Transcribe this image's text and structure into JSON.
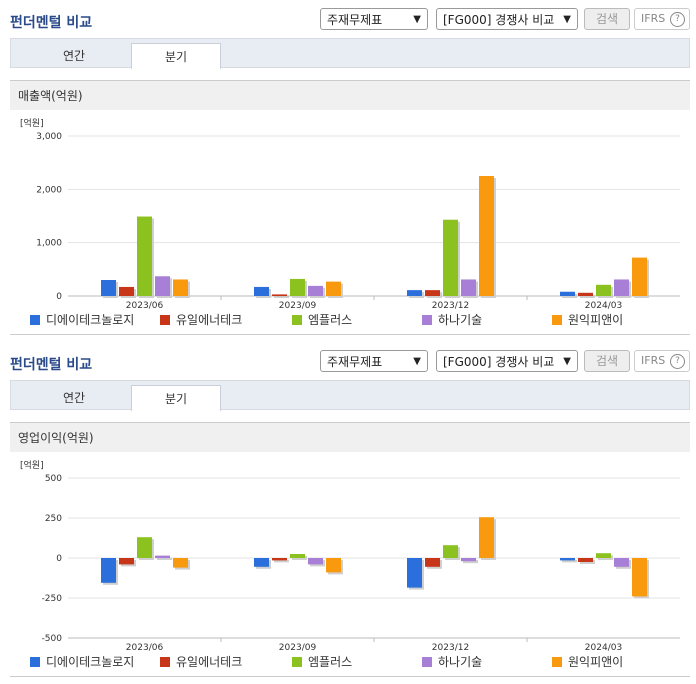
{
  "panels": [
    {
      "title": "펀더멘털 비교",
      "select1": "주재무제표",
      "select2": "[FG000] 경쟁사 비교",
      "search_label": "검색",
      "ifrs_label": "IFRS",
      "ifrs_help": "?",
      "tabs": [
        "연간",
        "분기"
      ],
      "active_tab": 1,
      "section_title": "매출액(억원)",
      "chart_data": {
        "type": "bar",
        "unit_label": "[억원]",
        "categories": [
          "2023/06",
          "2023/09",
          "2023/12",
          "2024/03"
        ],
        "y_ticks": [
          "3,000",
          "2,000",
          "1,000",
          "0"
        ],
        "y_tick_values": [
          3000,
          2000,
          1000,
          0
        ],
        "ylim": [
          0,
          3000
        ],
        "series": [
          {
            "name": "디에이테크놀로지",
            "color": "#2a6fdb",
            "values": [
              300,
              170,
              110,
              80
            ]
          },
          {
            "name": "유일에너테크",
            "color": "#c8361a",
            "values": [
              170,
              30,
              110,
              60
            ]
          },
          {
            "name": "엠플러스",
            "color": "#8cc21f",
            "values": [
              1490,
              320,
              1430,
              210
            ]
          },
          {
            "name": "하나기술",
            "color": "#a77fd6",
            "values": [
              370,
              190,
              310,
              310
            ]
          },
          {
            "name": "원익피앤이",
            "color": "#f99a0e",
            "values": [
              310,
              270,
              2250,
              720
            ]
          }
        ]
      }
    },
    {
      "title": "펀더멘털 비교",
      "select1": "주재무제표",
      "select2": "[FG000] 경쟁사 비교",
      "search_label": "검색",
      "ifrs_label": "IFRS",
      "ifrs_help": "?",
      "tabs": [
        "연간",
        "분기"
      ],
      "active_tab": 1,
      "section_title": "영업이익(억원)",
      "chart_data": {
        "type": "bar",
        "unit_label": "[억원]",
        "categories": [
          "2023/06",
          "2023/09",
          "2023/12",
          "2024/03"
        ],
        "y_ticks": [
          "500",
          "250",
          "0",
          "-250",
          "-500"
        ],
        "y_tick_values": [
          500,
          250,
          0,
          -250,
          -500
        ],
        "ylim": [
          -500,
          500
        ],
        "series": [
          {
            "name": "디에이테크놀로지",
            "color": "#2a6fdb",
            "values": [
              -155,
              -55,
              -185,
              -15
            ]
          },
          {
            "name": "유일에너테크",
            "color": "#c8361a",
            "values": [
              -40,
              -15,
              -55,
              -25
            ]
          },
          {
            "name": "엠플러스",
            "color": "#8cc21f",
            "values": [
              130,
              25,
              80,
              30
            ]
          },
          {
            "name": "하나기술",
            "color": "#a77fd6",
            "values": [
              15,
              -40,
              -20,
              -55
            ]
          },
          {
            "name": "원익피앤이",
            "color": "#f99a0e",
            "values": [
              -60,
              -90,
              255,
              -240
            ]
          }
        ]
      }
    }
  ]
}
